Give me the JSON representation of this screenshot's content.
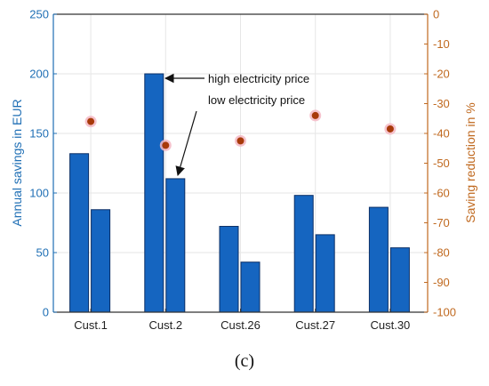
{
  "chart_data": {
    "type": "bar",
    "categories": [
      "Cust.1",
      "Cust.2",
      "Cust.26",
      "Cust.27",
      "Cust.30"
    ],
    "series": [
      {
        "values": [
          133,
          200,
          72,
          98,
          88
        ],
        "color": "#1565c0",
        "axis": "left"
      },
      {
        "values": [
          86,
          112,
          42,
          65,
          54
        ],
        "color": "#1565c0",
        "axis": "left"
      },
      {
        "type": "scatter",
        "values": [
          -36,
          -44,
          -42.5,
          -34,
          -38.5
        ],
        "color": "#a83a0a",
        "halo": "#f4b8c4",
        "axis": "right"
      }
    ],
    "ylabel": "Annual savings in EUR",
    "ylim": [
      0,
      250
    ],
    "yticks": [
      "0",
      "50",
      "100",
      "150",
      "200",
      "250"
    ],
    "ylabel_right": "Saving reduction in %",
    "ylim_right": [
      -100,
      0
    ],
    "yticks_right": [
      "-100",
      "-90",
      "-80",
      "-70",
      "-60",
      "-50",
      "-40",
      "-30",
      "-20",
      "-10",
      "0"
    ],
    "grid": true,
    "annotations": [
      {
        "text": "high electricity price",
        "target": {
          "series": 0,
          "category": 1
        }
      },
      {
        "text": "low electricity price",
        "target": {
          "series": 1,
          "category": 1
        }
      }
    ],
    "caption": "(c)",
    "colors": {
      "left_axis": "#1f6fb5",
      "right_axis": "#c0691f",
      "bar": "#1565c0",
      "bar_edge": "#0b2f66",
      "grid": "#e6e6e6"
    }
  }
}
